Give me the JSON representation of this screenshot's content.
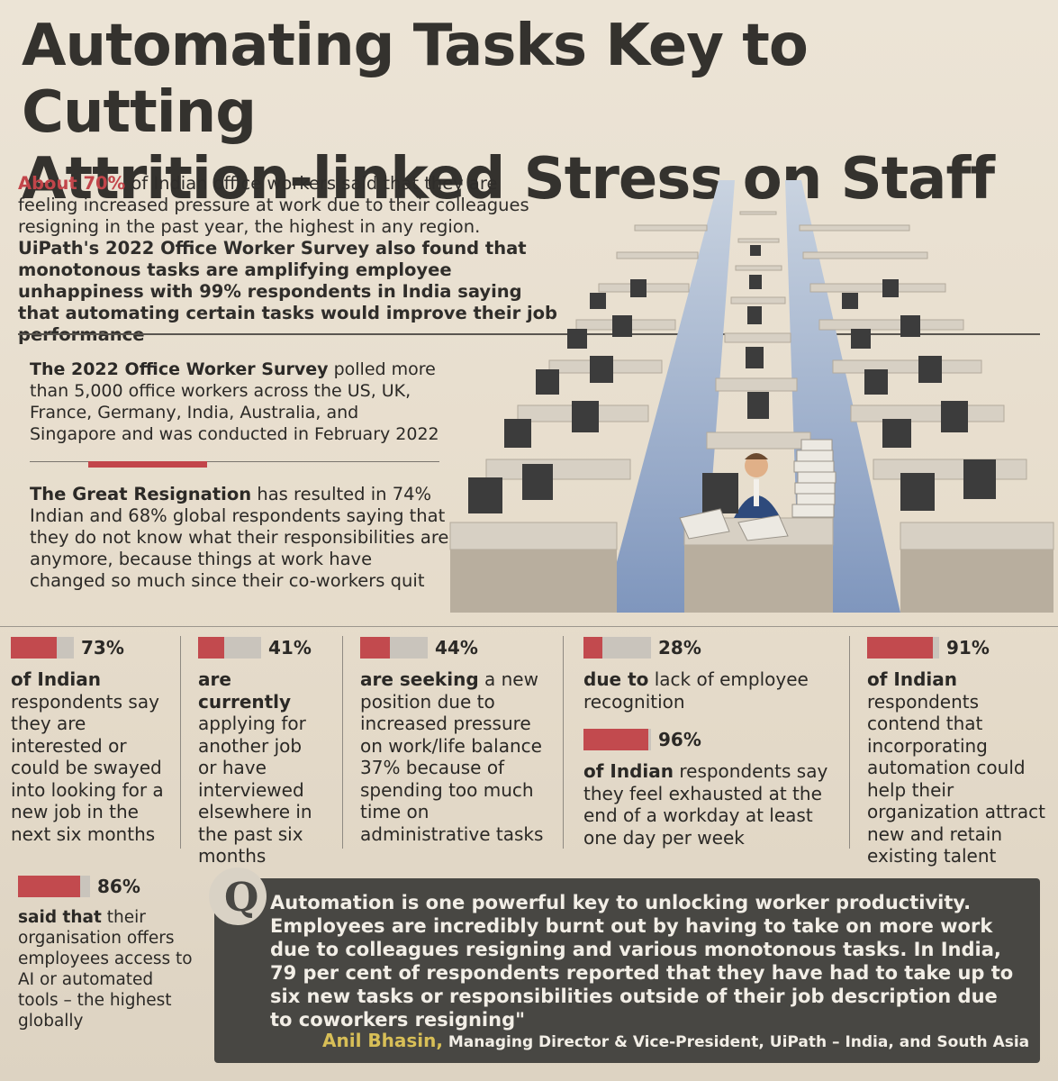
{
  "headline": {
    "line1": "Automating Tasks Key to Cutting",
    "line2": "Attrition-linked Stress on Staff"
  },
  "intro": {
    "highlight": "About 70%",
    "text1": " of Indian office workers said that they are feeling increased pressure at work due to their colleagues resigning in the past year, the highest in any region. ",
    "bold": "UiPath's 2022 Office Worker Survey also found that monotonous tasks are amplifying employee unhappiness with 99% respondents in India saying that automating certain tasks would improve their job performance"
  },
  "survey": {
    "bold": "The 2022 Office Worker Survey",
    "text": " polled more than 5,000 office workers across the US, UK, France, Germany, India, Australia, and Singapore and was conducted in February 2022"
  },
  "great": {
    "bold": "The Great Resignation",
    "text": " has resulted in 74% Indian and 68% global respondents saying that they do not know what their responsibilities are anymore, because things at work have changed so much since their co-workers quit"
  },
  "stats": [
    {
      "pct_label": "73%",
      "value": 0.73,
      "bold": "of Indian",
      "text": " respondents say they are interested or could be swayed into looking for a new job in the next six months"
    },
    {
      "pct_label": "41%",
      "value": 0.41,
      "bold": "are currently",
      "text": " applying for another job or have interviewed elsewhere in the past six months"
    },
    {
      "pct_label": "44%",
      "value": 0.44,
      "bold": "are seeking",
      "text": " a new position due to increased pressure on work/life balance 37% because of spending too much time on administrative tasks"
    },
    {
      "pct_label": "28%",
      "value": 0.28,
      "bold": "due to",
      "text": " lack of employee recognition"
    },
    {
      "pct_label": "96%",
      "value": 0.96,
      "bold": "of Indian",
      "text": " respondents say they feel exhausted at the end of a workday at least one day per week"
    },
    {
      "pct_label": "91%",
      "value": 0.91,
      "bold": "of Indian",
      "text": " respondents contend that incorporating automation could help their organization attract new and retain existing talent"
    },
    {
      "pct_label": "86%",
      "value": 0.86,
      "bold": "said that",
      "text": " their organisation offers employees access to AI or automated tools – the highest globally"
    }
  ],
  "quote": {
    "text": "Automation is one powerful key to unlocking worker productivity. Employees are incredibly burnt out by having to take on more work due to colleagues resigning and various monotonous tasks. In India, 79 per cent of respondents reported that they have had to take up to six new tasks or responsibilities outside of their job description due to coworkers resigning\"",
    "name": "Anil Bhasin,",
    "title": " Managing Director & Vice-President, UiPath – India, and South Asia"
  },
  "colors": {
    "accent": "#c24a4e",
    "quote_bg": "#484743",
    "name": "#d8bf57"
  }
}
